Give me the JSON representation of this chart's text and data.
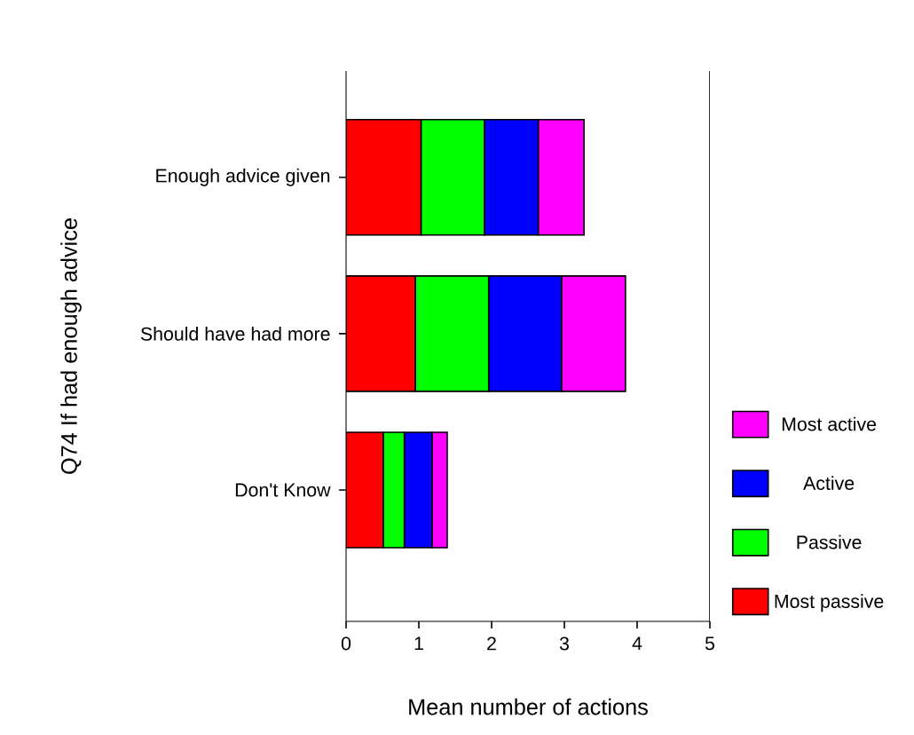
{
  "chart_data": {
    "type": "bar",
    "orientation": "horizontal",
    "stacked": true,
    "xlabel": "Mean number of actions",
    "ylabel": "Q74 If had enough advice",
    "categories": [
      "Enough advice given",
      "Should have had more",
      "Don't Know"
    ],
    "series": [
      {
        "name": "Most passive",
        "color": "#ff0000",
        "values": [
          1.03,
          0.95,
          0.51
        ]
      },
      {
        "name": "Passive",
        "color": "#00ff00",
        "values": [
          0.87,
          1.01,
          0.29
        ]
      },
      {
        "name": "Active",
        "color": "#0000ff",
        "values": [
          0.74,
          1.0,
          0.38
        ]
      },
      {
        "name": "Most active",
        "color": "#ff00ff",
        "values": [
          0.63,
          0.88,
          0.21
        ]
      }
    ],
    "xlim": [
      0,
      5
    ],
    "xticks": [
      0,
      1,
      2,
      3,
      4,
      5
    ],
    "legend": "right"
  }
}
